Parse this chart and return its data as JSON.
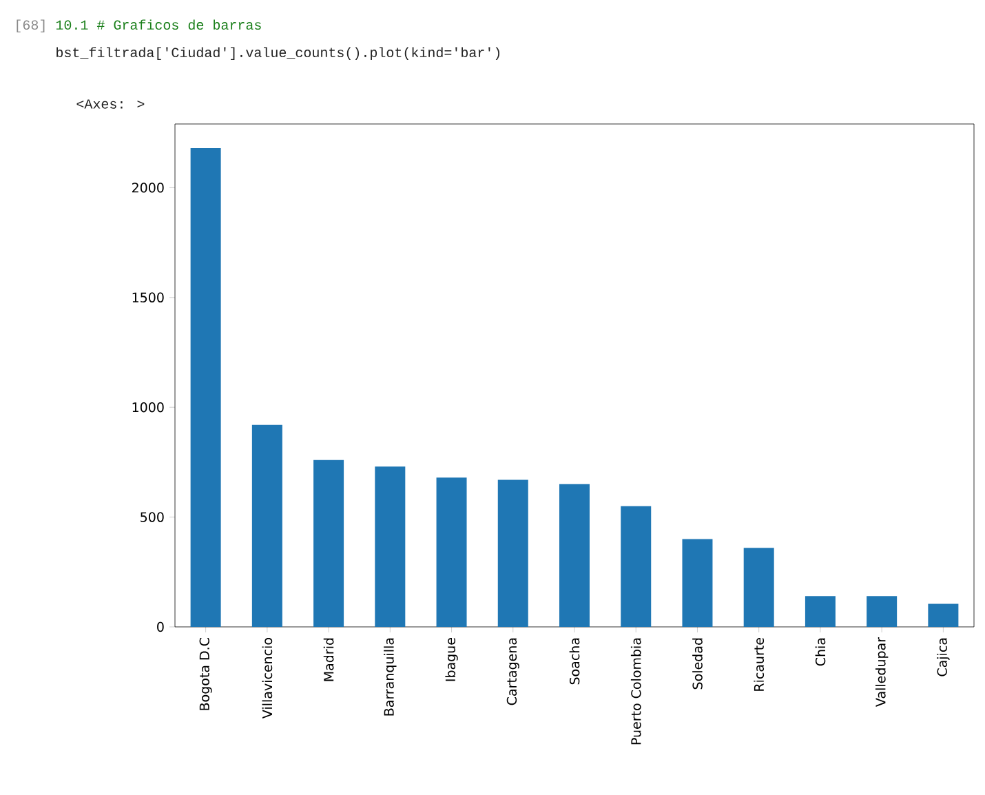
{
  "chart_data": {
    "type": "bar",
    "annotations": [
      "[68]",
      "10.1 # Graficos de barras",
      "bst_filtrada['Ciudad'].value_counts().plot(kind='bar')",
      "<Axes: >"
    ],
    "categories": [
      "Bogota D.C",
      "Villavicencio",
      "Madrid",
      "Barranquilla",
      "Ibague",
      "Cartagena",
      "Soacha",
      "Puerto Colombia",
      "Soledad",
      "Ricaurte",
      "Chia",
      "Valledupar",
      "Cajica"
    ],
    "values": [
      2180,
      920,
      760,
      730,
      680,
      670,
      650,
      550,
      400,
      360,
      140,
      140,
      105
    ],
    "color": "#1f77b4",
    "ylim": [
      0,
      2290
    ],
    "yticks": [
      0,
      500,
      1000,
      1500,
      2000
    ],
    "grid": false
  }
}
